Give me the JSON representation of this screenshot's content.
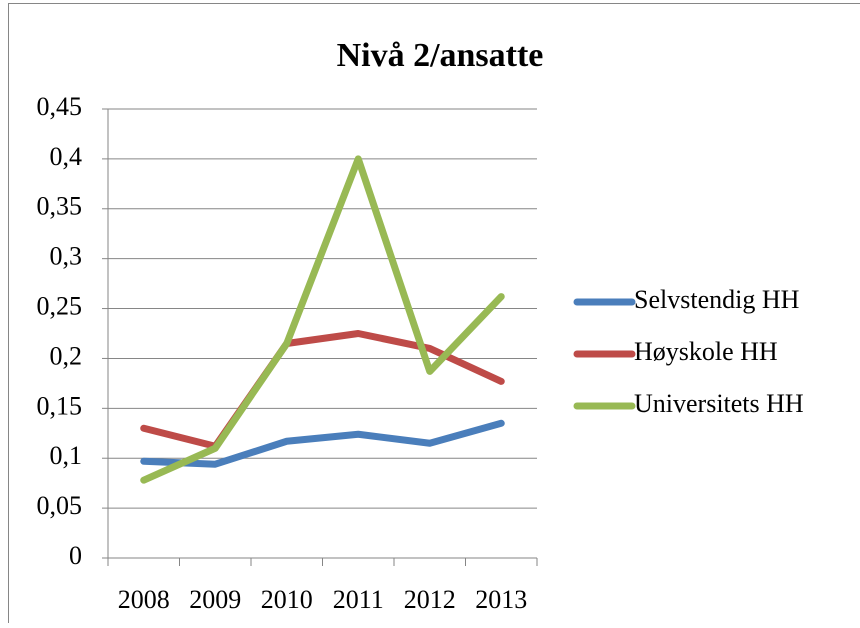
{
  "chart_data": {
    "type": "line",
    "title": "Nivå 2/ansatte",
    "categories": [
      "2008",
      "2009",
      "2010",
      "2011",
      "2012",
      "2013"
    ],
    "series": [
      {
        "name": "Selvstendig HH",
        "color": "#4a7ebb",
        "values": [
          0.097,
          0.094,
          0.117,
          0.124,
          0.115,
          0.135
        ]
      },
      {
        "name": "Høyskole HH",
        "color": "#be4b48",
        "values": [
          0.13,
          0.112,
          0.215,
          0.225,
          0.21,
          0.177
        ]
      },
      {
        "name": "Universitets HH",
        "color": "#98b954",
        "values": [
          0.078,
          0.11,
          0.215,
          0.4,
          0.187,
          0.262
        ]
      }
    ],
    "ylim": [
      0,
      0.45
    ],
    "yticks": [
      0,
      {
        "value": 0.05,
        "label": "0,05"
      },
      {
        "value": 0.1,
        "label": "0,1"
      },
      {
        "value": 0.15,
        "label": "0,15"
      },
      {
        "value": 0.2,
        "label": "0,2"
      },
      {
        "value": 0.25,
        "label": "0,25"
      },
      {
        "value": 0.3,
        "label": "0,3"
      },
      {
        "value": 0.35,
        "label": "0,35"
      },
      {
        "value": 0.4,
        "label": "0,4"
      },
      {
        "value": 0.45,
        "label": "0,45"
      }
    ],
    "grid": true,
    "legend": "right"
  }
}
